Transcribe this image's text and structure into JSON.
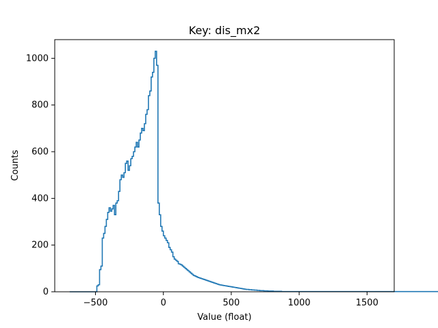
{
  "chart_data": {
    "type": "histogram",
    "title": "Key: dis_mx2",
    "xlabel": "Value (float)",
    "ylabel": "Counts",
    "xlim": [
      -800,
      1700
    ],
    "ylim": [
      0,
      1080
    ],
    "xticks": [
      -500,
      0,
      500,
      1000,
      1500
    ],
    "yticks": [
      0,
      200,
      400,
      600,
      800,
      1000
    ],
    "xtick_labels": [
      "−500",
      "0",
      "500",
      "1000",
      "1500"
    ],
    "ytick_labels": [
      "0",
      "200",
      "400",
      "600",
      "800",
      "1000"
    ],
    "grid": false,
    "legend": "none",
    "line_color": "#1f77b4",
    "bins": {
      "start": -690,
      "width": 10,
      "counts": [
        0,
        0,
        0,
        0,
        0,
        0,
        0,
        0,
        0,
        0,
        0,
        0,
        0,
        0,
        0,
        0,
        0,
        0,
        0,
        0,
        25,
        30,
        95,
        110,
        230,
        250,
        280,
        310,
        340,
        360,
        345,
        355,
        370,
        330,
        380,
        390,
        430,
        480,
        500,
        490,
        510,
        550,
        560,
        520,
        540,
        570,
        580,
        600,
        620,
        640,
        620,
        650,
        680,
        700,
        690,
        720,
        760,
        780,
        840,
        860,
        920,
        940,
        1000,
        1030,
        970,
        380,
        330,
        280,
        260,
        240,
        230,
        220,
        210,
        190,
        180,
        170,
        150,
        140,
        135,
        130,
        120,
        118,
        115,
        110,
        105,
        100,
        95,
        90,
        85,
        80,
        75,
        70,
        68,
        65,
        62,
        60,
        58,
        56,
        54,
        52,
        50,
        48,
        46,
        44,
        42,
        40,
        38,
        36,
        34,
        32,
        30,
        29,
        28,
        27,
        26,
        25,
        24,
        23,
        22,
        21,
        20,
        19,
        18,
        17,
        16,
        15,
        14,
        13,
        12,
        11,
        10,
        10,
        9,
        9,
        8,
        8,
        7,
        7,
        6,
        6,
        5,
        5,
        5,
        4,
        4,
        4,
        3,
        3,
        3,
        3,
        2,
        2,
        2,
        2,
        2,
        2,
        1,
        1,
        1,
        1,
        1,
        1,
        1,
        1,
        1,
        1,
        1,
        1,
        1,
        1,
        1,
        1,
        1,
        1,
        1,
        1,
        1,
        1,
        1,
        1,
        1,
        1,
        1,
        1,
        1,
        1,
        1,
        1,
        1,
        1,
        1,
        1,
        1,
        1,
        1,
        1,
        1,
        1,
        1,
        1,
        1,
        1,
        1,
        1,
        1,
        1,
        1,
        1,
        1,
        1,
        1,
        1,
        1,
        1,
        1,
        1,
        1,
        1,
        1,
        1,
        1,
        1,
        1,
        1,
        1,
        1,
        1,
        1,
        1,
        1,
        1,
        1,
        1,
        1,
        1,
        1,
        1,
        1,
        1,
        1,
        1,
        1,
        1,
        1,
        1,
        1,
        1,
        1,
        1,
        1,
        1,
        1,
        1,
        1,
        1,
        1,
        1,
        1,
        1,
        1,
        1,
        1,
        1,
        1,
        1,
        1,
        1,
        1,
        1,
        1,
        1,
        1,
        1,
        1,
        1,
        1,
        1,
        1,
        1,
        1
      ]
    }
  }
}
